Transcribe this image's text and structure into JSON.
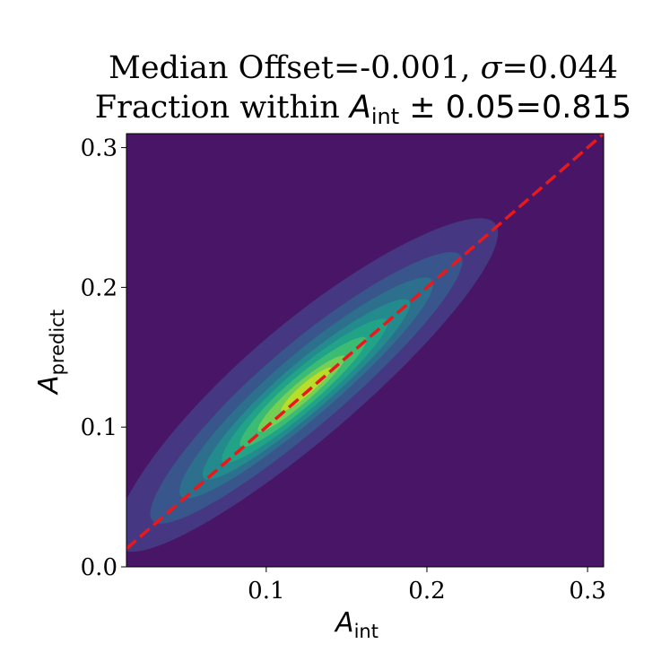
{
  "chart_data": {
    "type": "density_contour",
    "title": {
      "line1": {
        "prefix": "Median Offset=-0.001, ",
        "symbol": "σ",
        "suffix": "=0.044"
      },
      "line2": {
        "prefix": "Fraction within ",
        "symbol": "A",
        "subscript": "int",
        "suffix": " ± 0.05=0.815"
      }
    },
    "xlabel": {
      "symbol": "A",
      "subscript": "int"
    },
    "ylabel": {
      "symbol": "A",
      "subscript": "predict"
    },
    "xlim": [
      0.013,
      0.31
    ],
    "ylim": [
      0.0,
      0.31
    ],
    "xticks": [
      {
        "value": 0.1,
        "label": "0.1"
      },
      {
        "value": 0.2,
        "label": "0.2"
      },
      {
        "value": 0.3,
        "label": "0.3"
      }
    ],
    "yticks": [
      {
        "value": 0.0,
        "label": "0.0"
      },
      {
        "value": 0.1,
        "label": "0.1"
      },
      {
        "value": 0.2,
        "label": "0.2"
      },
      {
        "value": 0.3,
        "label": "0.3"
      }
    ],
    "background_color": "#481567",
    "reference_line": {
      "x": [
        0.013,
        0.31
      ],
      "y": [
        0.013,
        0.31
      ],
      "color": "#e8191c",
      "style": "dashed"
    },
    "density_levels": [
      {
        "color": "#453781",
        "center": [
          0.125,
          0.13
        ],
        "angle_deg": 45,
        "semi_major": 0.165,
        "semi_minor": 0.035
      },
      {
        "color": "#39568c",
        "center": [
          0.125,
          0.128
        ],
        "angle_deg": 45,
        "semi_major": 0.135,
        "semi_minor": 0.025
      },
      {
        "color": "#2d708e",
        "center": [
          0.125,
          0.128
        ],
        "angle_deg": 45,
        "semi_major": 0.11,
        "semi_minor": 0.019
      },
      {
        "color": "#238a8d",
        "center": [
          0.125,
          0.127
        ],
        "angle_deg": 45,
        "semi_major": 0.09,
        "semi_minor": 0.015
      },
      {
        "color": "#20a387",
        "center": [
          0.124,
          0.126
        ],
        "angle_deg": 45,
        "semi_major": 0.072,
        "semi_minor": 0.012
      },
      {
        "color": "#3cbb75",
        "center": [
          0.123,
          0.125
        ],
        "angle_deg": 45,
        "semi_major": 0.055,
        "semi_minor": 0.009
      },
      {
        "color": "#73d055",
        "center": [
          0.122,
          0.124
        ],
        "angle_deg": 45,
        "semi_major": 0.038,
        "semi_minor": 0.006
      },
      {
        "color": "#b8de29",
        "center": [
          0.125,
          0.127
        ],
        "angle_deg": 45,
        "semi_major": 0.022,
        "semi_minor": 0.0035
      }
    ]
  }
}
